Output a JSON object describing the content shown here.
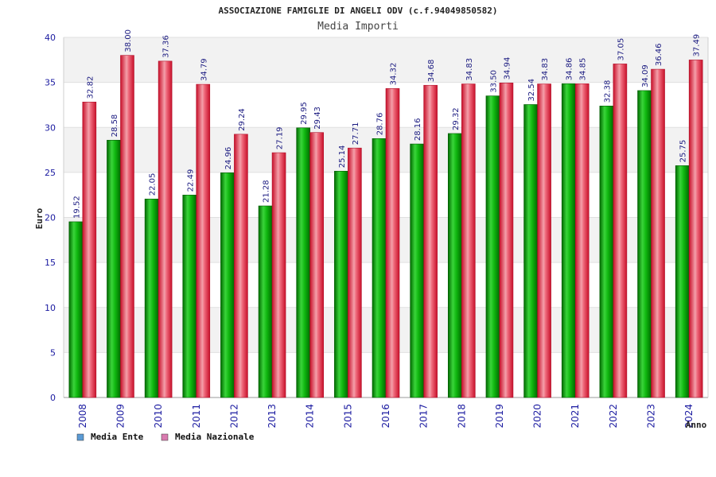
{
  "chart_data": {
    "type": "bar",
    "title": "ASSOCIAZIONE FAMIGLIE DI ANGELI ODV (c.f.94049850582)",
    "subtitle": "Media Importi",
    "xlabel": "Anno",
    "ylabel": "Euro",
    "ylim": [
      0,
      40
    ],
    "yticks": [
      0,
      5,
      10,
      15,
      20,
      25,
      30,
      35,
      40
    ],
    "categories": [
      "2008",
      "2009",
      "2010",
      "2011",
      "2012",
      "2013",
      "2014",
      "2015",
      "2016",
      "2017",
      "2018",
      "2019",
      "2020",
      "2021",
      "2022",
      "2023",
      "2024"
    ],
    "series": [
      {
        "name": "Media Ente",
        "color": "#00b000",
        "values": [
          19.52,
          28.58,
          22.05,
          22.49,
          24.96,
          21.28,
          29.95,
          25.14,
          28.76,
          28.16,
          29.32,
          33.5,
          32.54,
          34.86,
          32.38,
          34.09,
          25.75
        ],
        "labels": [
          "19.52",
          "28.58",
          "22.05",
          "22.49",
          "24.96",
          "21.28",
          "29.95",
          "25.14",
          "28.76",
          "28.16",
          "29.32",
          "33.50",
          "32.54",
          "34.86",
          "32.38",
          "34.09",
          "25.75"
        ]
      },
      {
        "name": "Media Nazionale",
        "color": "#e0203a",
        "values": [
          32.82,
          38.0,
          37.36,
          34.79,
          29.24,
          27.19,
          29.43,
          27.71,
          34.32,
          34.68,
          34.83,
          34.94,
          34.83,
          34.85,
          37.05,
          36.46,
          37.49
        ],
        "labels": [
          "32.82",
          "38.00",
          "37.36",
          "34.79",
          "29.24",
          "27.19",
          "29.43",
          "27.71",
          "34.32",
          "34.68",
          "34.83",
          "34.94",
          "34.83",
          "34.85",
          "37.05",
          "36.46",
          "37.49"
        ]
      }
    ],
    "legend": {
      "position": "bottom-left",
      "items": [
        {
          "label": "Media Ente",
          "color": "#5b9bd5"
        },
        {
          "label": "Media Nazionale",
          "color": "#d97bb0"
        }
      ]
    },
    "grid": true
  }
}
